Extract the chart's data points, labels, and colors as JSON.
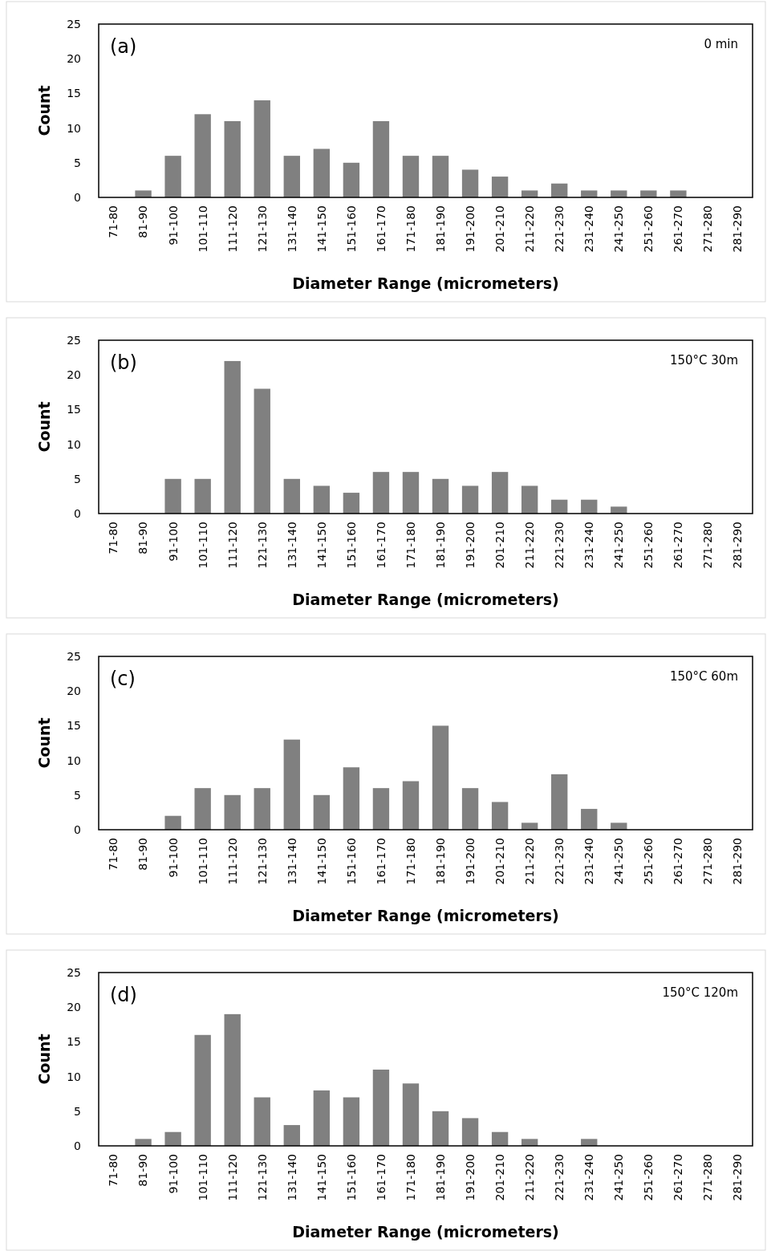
{
  "chart_data": [
    {
      "type": "bar",
      "xlabel": "Diameter Range (micrometers)",
      "ylabel": "Count",
      "annotations": [
        "(a)",
        "0 min"
      ],
      "categories": [
        "71-80",
        "81-90",
        "91-100",
        "101-110",
        "111-120",
        "121-130",
        "131-140",
        "141-150",
        "151-160",
        "161-170",
        "171-180",
        "181-190",
        "191-200",
        "201-210",
        "211-220",
        "221-230",
        "231-240",
        "241-250",
        "251-260",
        "261-270",
        "271-280",
        "281-290"
      ],
      "values": [
        0,
        1,
        6,
        12,
        11,
        14,
        6,
        7,
        5,
        11,
        6,
        6,
        4,
        3,
        1,
        2,
        1,
        1,
        1,
        1,
        0,
        0
      ],
      "color": "#808080",
      "ylim": [
        0,
        25
      ],
      "yticks": [
        0,
        5,
        10,
        15,
        20,
        25
      ],
      "grid": false
    },
    {
      "type": "bar",
      "xlabel": "Diameter Range (micrometers)",
      "ylabel": "Count",
      "annotations": [
        "(b)",
        "150°C 30m"
      ],
      "categories": [
        "71-80",
        "81-90",
        "91-100",
        "101-110",
        "111-120",
        "121-130",
        "131-140",
        "141-150",
        "151-160",
        "161-170",
        "171-180",
        "181-190",
        "191-200",
        "201-210",
        "211-220",
        "221-230",
        "231-240",
        "241-250",
        "251-260",
        "261-270",
        "271-280",
        "281-290"
      ],
      "values": [
        0,
        0,
        5,
        5,
        22,
        18,
        5,
        4,
        3,
        6,
        6,
        5,
        4,
        6,
        4,
        2,
        2,
        1,
        0,
        0,
        0,
        0
      ],
      "color": "#808080",
      "ylim": [
        0,
        25
      ],
      "yticks": [
        0,
        5,
        10,
        15,
        20,
        25
      ],
      "grid": false
    },
    {
      "type": "bar",
      "xlabel": "Diameter Range (micrometers)",
      "ylabel": "Count",
      "annotations": [
        "(c)",
        "150°C 60m"
      ],
      "categories": [
        "71-80",
        "81-90",
        "91-100",
        "101-110",
        "111-120",
        "121-130",
        "131-140",
        "141-150",
        "151-160",
        "161-170",
        "171-180",
        "181-190",
        "191-200",
        "201-210",
        "211-220",
        "221-230",
        "231-240",
        "241-250",
        "251-260",
        "261-270",
        "271-280",
        "281-290"
      ],
      "values": [
        0,
        0,
        2,
        6,
        5,
        6,
        13,
        5,
        9,
        6,
        7,
        15,
        6,
        4,
        1,
        8,
        3,
        1,
        0,
        0,
        0,
        0
      ],
      "color": "#808080",
      "ylim": [
        0,
        25
      ],
      "yticks": [
        0,
        5,
        10,
        15,
        20,
        25
      ],
      "grid": false
    },
    {
      "type": "bar",
      "xlabel": "Diameter Range (micrometers)",
      "ylabel": "Count",
      "annotations": [
        "(d)",
        "150°C 120m"
      ],
      "categories": [
        "71-80",
        "81-90",
        "91-100",
        "101-110",
        "111-120",
        "121-130",
        "131-140",
        "141-150",
        "151-160",
        "161-170",
        "171-180",
        "181-190",
        "191-200",
        "201-210",
        "211-220",
        "221-230",
        "231-240",
        "241-250",
        "251-260",
        "261-270",
        "271-280",
        "281-290"
      ],
      "values": [
        0,
        1,
        2,
        16,
        19,
        7,
        3,
        8,
        7,
        11,
        9,
        5,
        4,
        2,
        1,
        0,
        1,
        0,
        0,
        0,
        0,
        0
      ],
      "color": "#808080",
      "ylim": [
        0,
        25
      ],
      "yticks": [
        0,
        5,
        10,
        15,
        20,
        25
      ],
      "grid": false
    }
  ]
}
